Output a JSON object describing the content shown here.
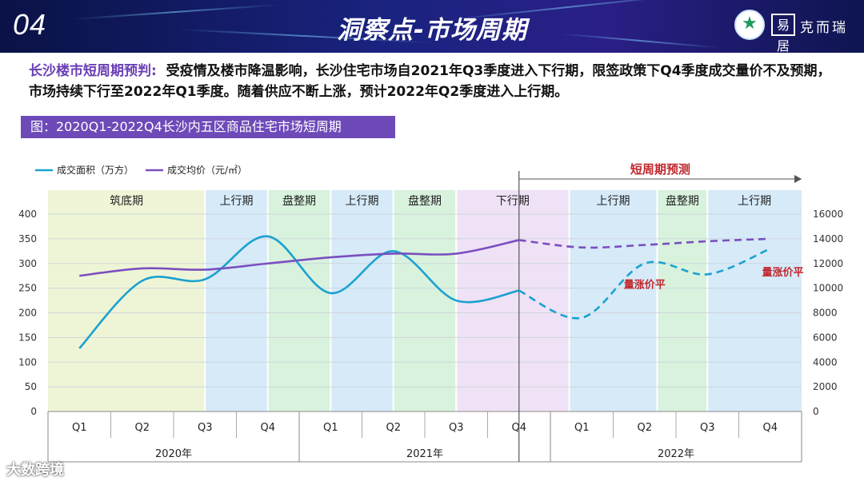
{
  "header": {
    "section_number": "04",
    "title": "洞察点-市场周期",
    "brand_text": "克而瑞",
    "brand_mark": "易居"
  },
  "intro": {
    "lead": "长沙楼市短周期预判:",
    "body": "受疫情及楼市降温影响，长沙住宅市场自2021年Q3季度进入下行期，限签政策下Q4季度成交量价不及预期，市场持续下行至2022年Q1季度。随着供应不断上涨，预计2022年Q2季度进入上行期。"
  },
  "figure_title": "图：2020Q1-2022Q4长沙内五区商品住宅市场短周期",
  "watermark": "大数跨境",
  "chart_data": {
    "type": "line",
    "categories": [
      "Q1",
      "Q2",
      "Q3",
      "Q4",
      "Q1",
      "Q2",
      "Q3",
      "Q4",
      "Q1",
      "Q2",
      "Q3",
      "Q4"
    ],
    "years": [
      {
        "label": "2020年",
        "start": 0,
        "end": 3
      },
      {
        "label": "2021年",
        "start": 4,
        "end": 7
      },
      {
        "label": "2022年",
        "start": 8,
        "end": 11
      }
    ],
    "y_left": {
      "min": 0,
      "max": 400,
      "ticks": [
        "0",
        "50",
        "100",
        "150",
        "200",
        "250",
        "300",
        "350",
        "400"
      ]
    },
    "y_right": {
      "min": 0,
      "max": 16000,
      "ticks": [
        "0",
        "2000",
        "4000",
        "6000",
        "8000",
        "10000",
        "12000",
        "14000",
        "16000"
      ]
    },
    "series": [
      {
        "name": "成交面积（万方）",
        "axis": "left",
        "color": "#1ba1d1",
        "values": [
          128,
          265,
          268,
          355,
          240,
          325,
          225,
          245,
          190,
          300,
          278,
          330
        ],
        "forecast_from": 7
      },
      {
        "name": "成交均价（元/㎡）",
        "axis": "right",
        "color": "#7a4fbf",
        "values": [
          11000,
          11600,
          11500,
          12000,
          12500,
          12800,
          12800,
          13900,
          13300,
          13500,
          13800,
          14000
        ],
        "forecast_from": 7
      }
    ],
    "phases": [
      {
        "label": "筑底期",
        "start": -0.5,
        "end": 2.0,
        "color": "#eef5d6"
      },
      {
        "label": "上行期",
        "start": 2.0,
        "end": 3.0,
        "color": "#d6eaf8"
      },
      {
        "label": "盘整期",
        "start": 3.0,
        "end": 4.0,
        "color": "#d8f2dd"
      },
      {
        "label": "上行期",
        "start": 4.0,
        "end": 5.0,
        "color": "#d6eaf8"
      },
      {
        "label": "盘整期",
        "start": 5.0,
        "end": 6.0,
        "color": "#d8f2dd"
      },
      {
        "label": "下行期",
        "start": 6.0,
        "end": 7.8,
        "color": "#efe2f6"
      },
      {
        "label": "上行期",
        "start": 7.8,
        "end": 9.2,
        "color": "#d6eaf8"
      },
      {
        "label": "盘整期",
        "start": 9.2,
        "end": 10.0,
        "color": "#d8f2dd"
      },
      {
        "label": "上行期",
        "start": 10.0,
        "end": 11.5,
        "color": "#d6eaf8"
      }
    ],
    "forecast_label": "短周期预测",
    "annotations": [
      {
        "text": "量涨价平",
        "x": 9.0,
        "y": 250
      },
      {
        "text": "量涨价平",
        "x": 11.2,
        "y": 275
      }
    ],
    "legend_position": "top-left",
    "grid": true
  }
}
